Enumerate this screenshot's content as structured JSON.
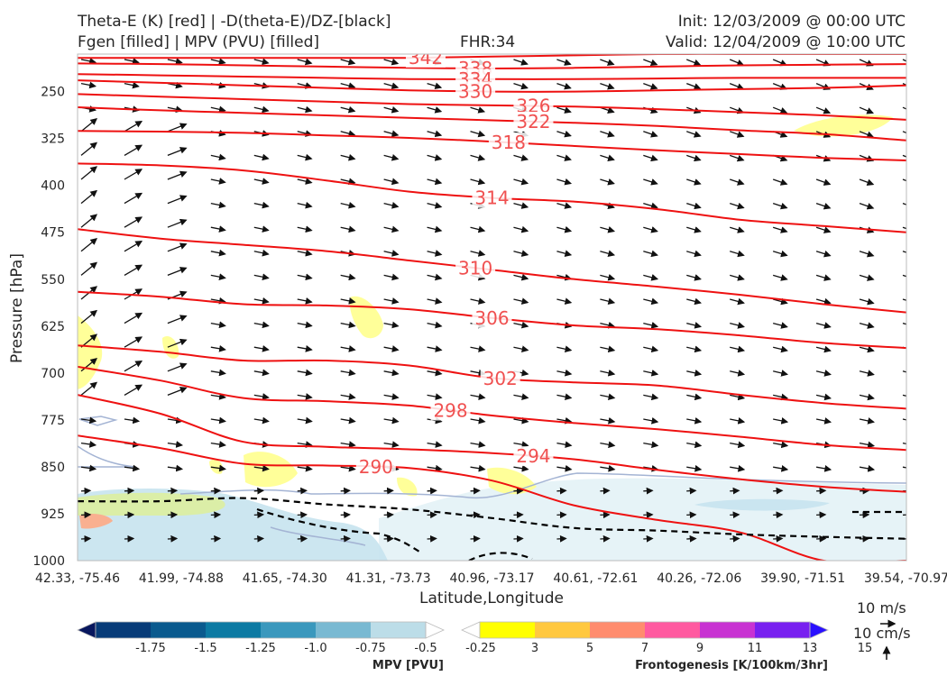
{
  "header": {
    "title_line1": "Theta-E (K) [red] | -D(theta-E)/DZ-[black]",
    "title_line2": "Fgen [filled] | MPV (PVU) [filled]",
    "fhr": "FHR:34",
    "init": "Init: 12/03/2009 @ 00:00 UTC",
    "valid": "Valid: 12/04/2009 @ 10:00 UTC"
  },
  "colors": {
    "theta_e": "#ee1111",
    "theta_e_label": "#f05050",
    "stability": "#000000",
    "vector": "#111111",
    "mpv_light": "#c7e3ee",
    "fgen_yellow": "#ffff99",
    "axis": "#888888"
  },
  "chart_data": {
    "type": "cross-section",
    "xlabel": "Latitude,Longitude",
    "ylabel": "Pressure [hPa]",
    "x_ticks": [
      "42.33, -75.46",
      "41.99, -74.88",
      "41.65, -74.30",
      "41.31, -73.73",
      "40.96, -73.17",
      "40.61, -72.61",
      "40.26, -72.06",
      "39.90, -71.51",
      "39.54, -70.97"
    ],
    "y_ticks": [
      250,
      325,
      400,
      475,
      550,
      625,
      700,
      775,
      850,
      925,
      1000
    ],
    "ylim": [
      1000,
      190
    ],
    "theta_e_contours": [
      {
        "label": "342",
        "p": [
          196,
          196,
          196,
          196,
          196,
          194,
          192,
          190,
          190,
          190,
          190
        ]
      },
      {
        "label": "338",
        "p": [
          205,
          206,
          208,
          210,
          212,
          213,
          212,
          210,
          208,
          207,
          206
        ]
      },
      {
        "label": "334",
        "p": [
          222,
          224,
          226,
          228,
          230,
          230,
          230,
          229,
          228,
          228,
          228
        ]
      },
      {
        "label": "330",
        "p": [
          232,
          236,
          240,
          244,
          248,
          250,
          250,
          248,
          246,
          244,
          240
        ]
      },
      {
        "label": "326",
        "p": [
          254,
          258,
          262,
          266,
          270,
          272,
          274,
          278,
          283,
          288,
          295
        ]
      },
      {
        "label": "322",
        "p": [
          275,
          280,
          284,
          288,
          292,
          296,
          300,
          305,
          312,
          318,
          328
        ]
      },
      {
        "label": "318",
        "p": [
          313,
          314,
          316,
          320,
          324,
          330,
          337,
          344,
          350,
          356,
          360
        ]
      },
      {
        "label": "314",
        "p": [
          365,
          368,
          376,
          392,
          410,
          420,
          426,
          438,
          455,
          465,
          475
        ]
      },
      {
        "label": "310",
        "p": [
          470,
          485,
          495,
          505,
          520,
          535,
          550,
          562,
          575,
          590,
          603
        ]
      },
      {
        "label": "306",
        "p": [
          570,
          578,
          590,
          592,
          598,
          612,
          624,
          630,
          640,
          652,
          660
        ]
      },
      {
        "label": "302",
        "p": [
          656,
          666,
          680,
          680,
          688,
          708,
          715,
          720,
          735,
          748,
          757
        ]
      },
      {
        "label": "298",
        "p": [
          690,
          712,
          740,
          745,
          752,
          768,
          780,
          790,
          802,
          815,
          823
        ]
      },
      {
        "label": "294",
        "p": [
          735,
          765,
          810,
          818,
          822,
          828,
          838,
          855,
          870,
          882,
          890
        ]
      },
      {
        "label": "290",
        "p": [
          800,
          820,
          845,
          848,
          852,
          872,
          912,
          935,
          955,
          1000,
          1000
        ]
      }
    ],
    "stability_contours": [
      {
        "label": "-D(theta-E)/DZ",
        "p": [
          905,
          905,
          900,
          910,
          918,
          932,
          948,
          952,
          958,
          962,
          965
        ]
      }
    ],
    "mpv_colorbar": {
      "label": "MPV [PVU]",
      "ticks": [
        "-1.75",
        "-1.5",
        "-1.25",
        "-1.0",
        "-0.75",
        "-0.5",
        "-0.25"
      ],
      "colors": [
        "#08175e",
        "#073b78",
        "#0a5a8e",
        "#0c7aa3",
        "#3a98bd",
        "#79b9d2",
        "#bcdde8",
        "#ffffff"
      ]
    },
    "fgen_colorbar": {
      "label": "Frontogenesis [K/100km/3hr]",
      "ticks": [
        "3",
        "5",
        "7",
        "9",
        "11",
        "13",
        "15"
      ],
      "colors": [
        "#ffffff",
        "#ffff00",
        "#ffc840",
        "#ff8c6e",
        "#ff5aa0",
        "#c832d2",
        "#7820f0",
        "#2a10ff"
      ]
    },
    "vector_reference": {
      "horizontal": "10 m/s",
      "vertical": "10 cm/s"
    }
  }
}
